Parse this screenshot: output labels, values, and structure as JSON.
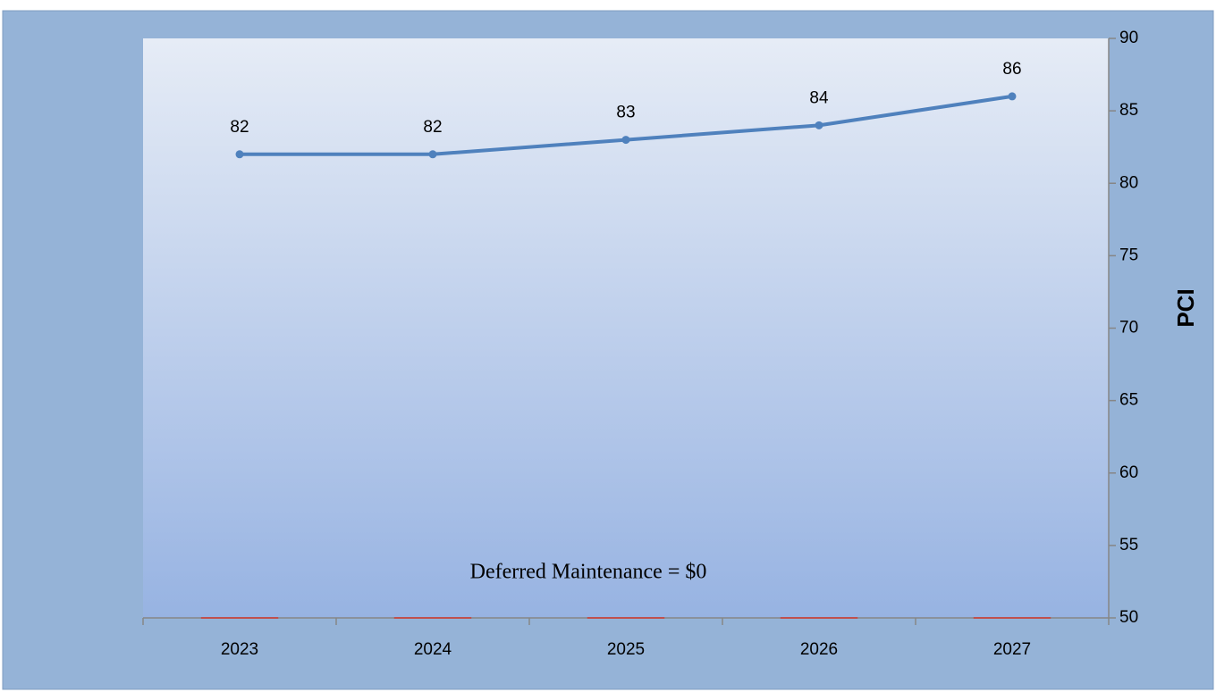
{
  "chart_data": {
    "type": "line",
    "categories": [
      "2023",
      "2024",
      "2025",
      "2026",
      "2027"
    ],
    "series": [
      {
        "color": "#4f81bd",
        "values": [
          82,
          82,
          83,
          84,
          86
        ]
      },
      {
        "type": "bar",
        "color": "#c0504d",
        "values": [
          0,
          0,
          0,
          0,
          0
        ]
      }
    ],
    "ylabel": "PCI",
    "ylim": [
      50,
      90
    ],
    "yticks": [
      50,
      55,
      60,
      65,
      70,
      75,
      80,
      85,
      90
    ],
    "y_axis_side": "right",
    "annotation": "Deferred Maintenance = $0",
    "data_labels": true
  }
}
